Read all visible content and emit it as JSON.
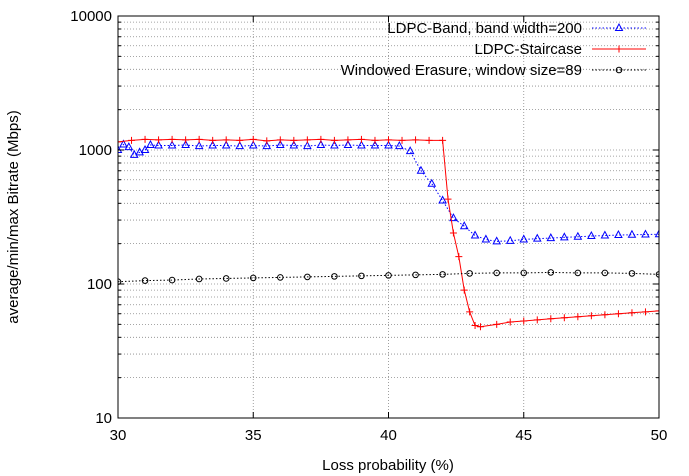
{
  "chart_data": {
    "type": "line",
    "title": "",
    "xlabel": "Loss probability (%)",
    "ylabel": "average/min/max Bitrate (Mbps)",
    "xlim": [
      30,
      50
    ],
    "ylim": [
      10,
      10000
    ],
    "yscale": "log",
    "grid": true,
    "legend_position": "top-right",
    "x_ticks": [
      "30",
      "35",
      "40",
      "45",
      "50"
    ],
    "y_ticks": [
      "10",
      "100",
      "1000",
      "10000"
    ],
    "series": [
      {
        "name": "LDPC-Band, band width=200",
        "color": "#0000ff",
        "marker": "triangle",
        "line_style": "dotted",
        "x": [
          30,
          30.2,
          30.4,
          30.6,
          30.8,
          31,
          31.2,
          31.5,
          32,
          32.5,
          33,
          33.5,
          34,
          34.5,
          35,
          35.5,
          36,
          36.5,
          37,
          37.5,
          38,
          38.5,
          39,
          39.5,
          40,
          40.4,
          40.8,
          41.2,
          41.6,
          42,
          42.4,
          42.8,
          43.2,
          43.6,
          44,
          44.5,
          45,
          45.5,
          46,
          46.5,
          47,
          47.5,
          48,
          48.5,
          49,
          49.5,
          50
        ],
        "y": [
          1000,
          1100,
          1050,
          920,
          960,
          1000,
          1090,
          1080,
          1080,
          1090,
          1070,
          1080,
          1080,
          1070,
          1080,
          1070,
          1090,
          1080,
          1070,
          1090,
          1080,
          1090,
          1080,
          1080,
          1080,
          1070,
          980,
          700,
          560,
          420,
          310,
          270,
          230,
          215,
          208,
          210,
          215,
          218,
          220,
          223,
          225,
          228,
          230,
          232,
          233,
          234,
          235
        ]
      },
      {
        "name": "LDPC-Staircase",
        "color": "#ff0000",
        "marker": "plus",
        "line_style": "solid",
        "x": [
          30,
          30.5,
          31,
          31.5,
          32,
          32.5,
          33,
          33.5,
          34,
          34.5,
          35,
          35.5,
          36,
          36.5,
          37,
          37.5,
          38,
          38.5,
          39,
          39.5,
          40,
          40.5,
          41,
          41.5,
          42,
          42.2,
          42.4,
          42.6,
          42.8,
          43,
          43.2,
          43.4,
          44,
          44.5,
          45,
          45.5,
          46,
          46.5,
          47,
          47.5,
          48,
          48.5,
          49,
          49.5,
          50
        ],
        "y": [
          1150,
          1180,
          1200,
          1190,
          1200,
          1190,
          1200,
          1180,
          1190,
          1180,
          1200,
          1170,
          1190,
          1180,
          1190,
          1200,
          1180,
          1190,
          1200,
          1180,
          1190,
          1180,
          1190,
          1180,
          1180,
          430,
          240,
          160,
          90,
          62,
          49,
          48,
          50,
          52,
          53,
          54,
          55,
          56,
          57,
          58,
          59,
          60,
          61,
          62,
          63
        ]
      },
      {
        "name": "Windowed Erasure, window size=89",
        "color": "#000000",
        "marker": "circle",
        "line_style": "dotted",
        "x": [
          30,
          31,
          32,
          33,
          34,
          35,
          36,
          37,
          38,
          39,
          40,
          41,
          42,
          43,
          44,
          45,
          46,
          47,
          48,
          49,
          50
        ],
        "y": [
          104,
          106,
          107,
          109,
          110,
          111,
          112,
          113,
          114,
          115,
          116,
          117,
          118,
          120,
          121,
          121,
          122,
          121,
          121,
          120,
          118
        ]
      }
    ]
  }
}
